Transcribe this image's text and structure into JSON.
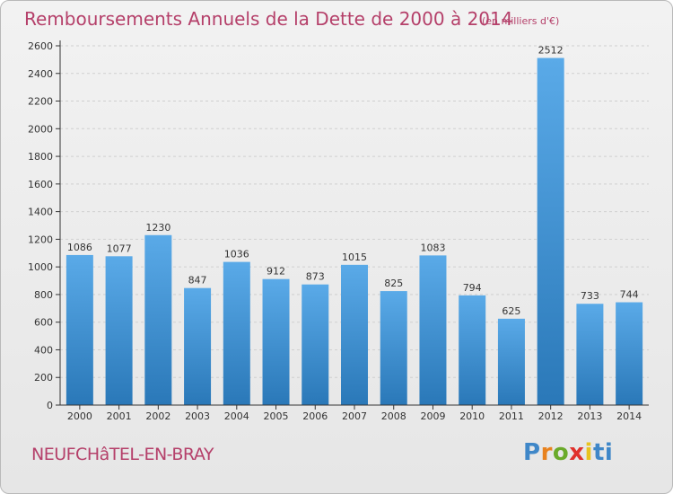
{
  "header": {
    "title": "Remboursements Annuels de la Dette de 2000 à 2014",
    "subtitle": "(en milliers d'€)"
  },
  "footer": {
    "location": "NEUFCHâTEL-EN-BRAY",
    "logo_text": "Proxiti"
  },
  "colors": {
    "title": "#b5406a",
    "bar_light": "#5aaae8",
    "bar_dark": "#2a78b8",
    "grid": "#d0d0d0",
    "axis": "#333333"
  },
  "chart_data": {
    "type": "bar",
    "title": "Remboursements Annuels de la Dette de 2000 à 2014",
    "unit": "(en milliers d'€)",
    "categories": [
      "2000",
      "2001",
      "2002",
      "2003",
      "2004",
      "2005",
      "2006",
      "2007",
      "2008",
      "2009",
      "2010",
      "2011",
      "2012",
      "2013",
      "2014"
    ],
    "values": [
      1086,
      1077,
      1230,
      847,
      1036,
      912,
      873,
      1015,
      825,
      1083,
      794,
      625,
      2512,
      733,
      744
    ],
    "ylim": [
      0,
      2600
    ],
    "yticks": [
      0,
      200,
      400,
      600,
      800,
      1000,
      1200,
      1400,
      1600,
      1800,
      2000,
      2200,
      2400,
      2600
    ],
    "grid": true,
    "data_labels": true
  }
}
